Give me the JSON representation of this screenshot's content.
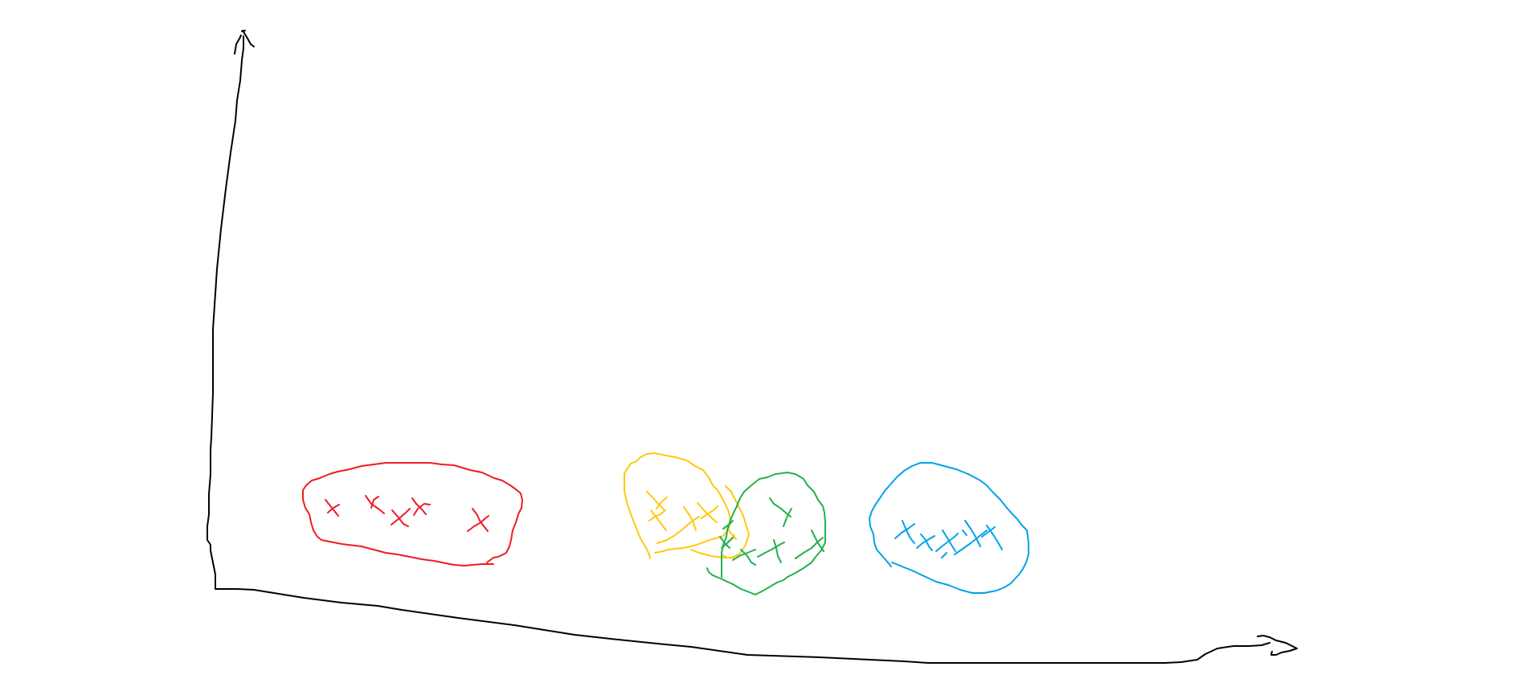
{
  "diagram": {
    "axes": {
      "color": "#000000",
      "x_axis": "x-axis-arrow",
      "y_axis": "y-axis-arrow"
    },
    "clusters": [
      {
        "id": "red",
        "color": "#ed1c24",
        "marks": 6
      },
      {
        "id": "yellow",
        "color": "#ffc90e",
        "marks": 7
      },
      {
        "id": "green",
        "color": "#22b14c",
        "marks": 6
      },
      {
        "id": "blue",
        "color": "#00a2e8",
        "marks": 7
      }
    ]
  }
}
